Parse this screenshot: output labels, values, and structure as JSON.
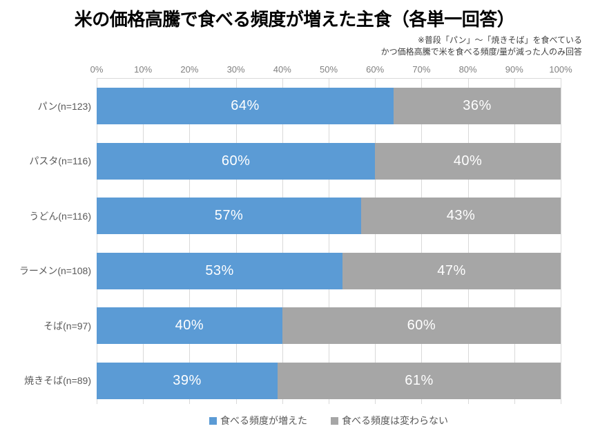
{
  "title": "米の価格高騰で食べる頻度が増えた主食（各単一回答）",
  "note": {
    "line1": "※普段「パン」～「焼きそば」を食べている",
    "line2": "かつ価格高騰で米を食べる頻度/量が減った人のみ回答"
  },
  "colors": {
    "increased": "#5B9BD5",
    "unchanged": "#A6A6A6",
    "gridline": "#D9D9D9",
    "axis_text": "#808080",
    "category_text": "#595959",
    "value_text": "#FFFFFF"
  },
  "axis": {
    "tick_labels": [
      "0%",
      "10%",
      "20%",
      "30%",
      "40%",
      "50%",
      "60%",
      "70%",
      "80%",
      "90%",
      "100%"
    ],
    "min": 0,
    "max": 100
  },
  "legend": [
    {
      "label": "食べる頻度が増えた",
      "color": "#5B9BD5"
    },
    {
      "label": "食べる頻度は変わらない",
      "color": "#A6A6A6"
    }
  ],
  "chart_data": {
    "type": "bar",
    "orientation": "horizontal",
    "stacked": true,
    "title": "米の価格高騰で食べる頻度が増えた主食（各単一回答）",
    "categories": [
      "パン(n=123)",
      "パスタ(n=116)",
      "うどん(n=116)",
      "ラーメン(n=108)",
      "そば(n=97)",
      "焼きそば(n=89)"
    ],
    "series": [
      {
        "name": "食べる頻度が増えた",
        "color": "#5B9BD5",
        "values": [
          64,
          60,
          57,
          53,
          40,
          39
        ]
      },
      {
        "name": "食べる頻度は変わらない",
        "color": "#A6A6A6",
        "values": [
          36,
          40,
          43,
          47,
          60,
          61
        ]
      }
    ],
    "value_suffix": "%",
    "xlim": [
      0,
      100
    ],
    "grid": true,
    "legend_position": "bottom"
  }
}
